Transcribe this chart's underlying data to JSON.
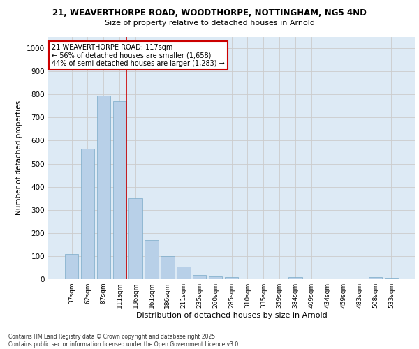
{
  "title_line1": "21, WEAVERTHORPE ROAD, WOODTHORPE, NOTTINGHAM, NG5 4ND",
  "title_line2": "Size of property relative to detached houses in Arnold",
  "xlabel": "Distribution of detached houses by size in Arnold",
  "ylabel": "Number of detached properties",
  "categories": [
    "37sqm",
    "62sqm",
    "87sqm",
    "111sqm",
    "136sqm",
    "161sqm",
    "186sqm",
    "211sqm",
    "235sqm",
    "260sqm",
    "285sqm",
    "310sqm",
    "335sqm",
    "359sqm",
    "384sqm",
    "409sqm",
    "434sqm",
    "459sqm",
    "483sqm",
    "508sqm",
    "533sqm"
  ],
  "values": [
    110,
    565,
    795,
    770,
    350,
    170,
    100,
    55,
    17,
    12,
    10,
    0,
    0,
    0,
    8,
    0,
    0,
    0,
    0,
    8,
    5
  ],
  "bar_color": "#b8d0e8",
  "bar_edge_color": "#7aaac8",
  "grid_color": "#cccccc",
  "bg_color": "#ddeaf5",
  "annotation_line1": "21 WEAVERTHORPE ROAD: 117sqm",
  "annotation_line2": "← 56% of detached houses are smaller (1,658)",
  "annotation_line3": "44% of semi-detached houses are larger (1,283) →",
  "annotation_box_color": "#ffffff",
  "annotation_box_edge": "#cc0000",
  "vline_color": "#cc0000",
  "ylim": [
    0,
    1050
  ],
  "yticks": [
    0,
    100,
    200,
    300,
    400,
    500,
    600,
    700,
    800,
    900,
    1000
  ],
  "footer_line1": "Contains HM Land Registry data © Crown copyright and database right 2025.",
  "footer_line2": "Contains public sector information licensed under the Open Government Licence v3.0."
}
